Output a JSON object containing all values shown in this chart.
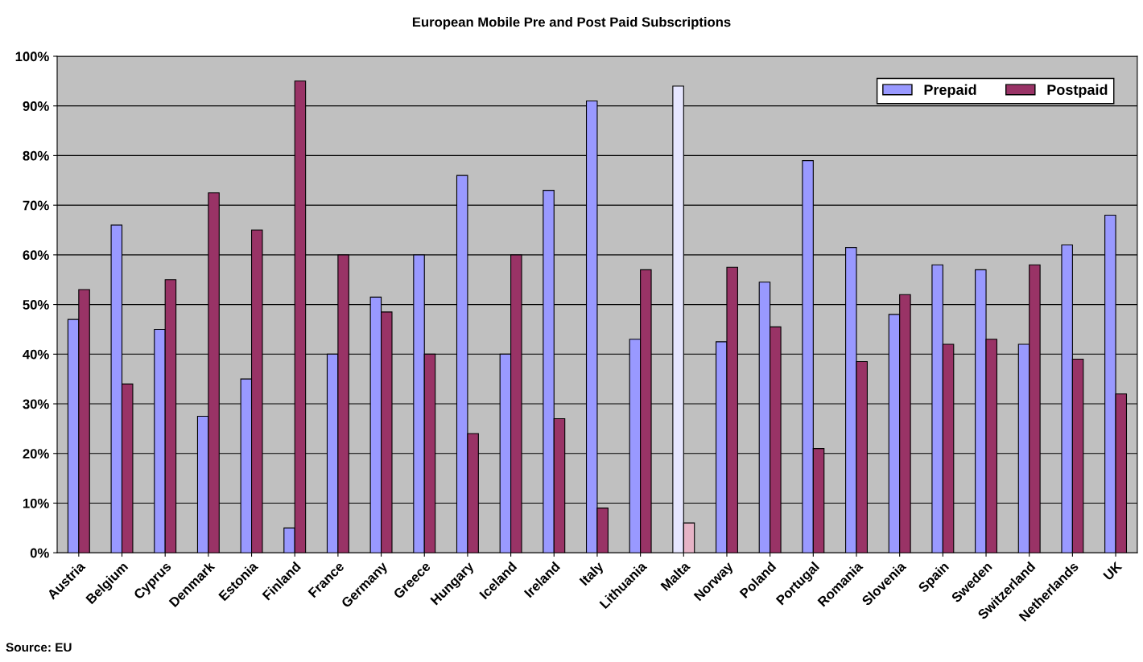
{
  "chart_data": {
    "type": "bar",
    "title": "European Mobile Pre and Post Paid Subscriptions",
    "categories": [
      "Austria",
      "Belgium",
      "Cyprus",
      "Denmark",
      "Estonia",
      "Finland",
      "France",
      "Germany",
      "Greece",
      "Hungary",
      "Iceland",
      "Ireland",
      "Italy",
      "Lithuania",
      "Malta",
      "Norway",
      "Poland",
      "Portugal",
      "Romania",
      "Slovenia",
      "Spain",
      "Sweden",
      "Switzerland",
      "Netherlands",
      "UK"
    ],
    "series": [
      {
        "name": "Prepaid",
        "color": "#9999ff",
        "colors": [
          "#9999ff",
          "#9999ff",
          "#9999ff",
          "#9999ff",
          "#9999ff",
          "#9999ff",
          "#9999ff",
          "#9999ff",
          "#9999ff",
          "#9999ff",
          "#9999ff",
          "#9999ff",
          "#9999ff",
          "#9999ff",
          "#e6e6ff",
          "#9999ff",
          "#9999ff",
          "#9999ff",
          "#9999ff",
          "#9999ff",
          "#9999ff",
          "#9999ff",
          "#9999ff",
          "#9999ff",
          "#9999ff"
        ],
        "values": [
          47,
          66,
          45,
          27.5,
          35,
          5,
          40,
          51.5,
          60,
          76,
          40,
          73,
          91,
          43,
          94,
          42.5,
          54.5,
          79,
          61.5,
          48,
          58,
          57,
          42,
          62,
          68
        ]
      },
      {
        "name": "Postpaid",
        "color": "#993366",
        "colors": [
          "#993366",
          "#993366",
          "#993366",
          "#993366",
          "#993366",
          "#993366",
          "#993366",
          "#993366",
          "#993366",
          "#993366",
          "#993366",
          "#993366",
          "#993366",
          "#993366",
          "#e6b3c6",
          "#993366",
          "#993366",
          "#993366",
          "#993366",
          "#993366",
          "#993366",
          "#993366",
          "#993366",
          "#993366",
          "#993366"
        ],
        "values": [
          53,
          34,
          55,
          72.5,
          65,
          95,
          60,
          48.5,
          40,
          24,
          60,
          27,
          9,
          57,
          6,
          57.5,
          45.5,
          21,
          38.5,
          52,
          42,
          43,
          58,
          39,
          32
        ]
      }
    ],
    "ylim": [
      0,
      100
    ],
    "yticks": [
      {
        "value": 0,
        "label": "0%"
      },
      {
        "value": 10,
        "label": "10%"
      },
      {
        "value": 20,
        "label": "20%"
      },
      {
        "value": 30,
        "label": "30%"
      },
      {
        "value": 40,
        "label": "40%"
      },
      {
        "value": 50,
        "label": "50%"
      },
      {
        "value": 60,
        "label": "60%"
      },
      {
        "value": 70,
        "label": "70%"
      },
      {
        "value": 80,
        "label": "80%"
      },
      {
        "value": 90,
        "label": "90%"
      },
      {
        "value": 100,
        "label": "100%"
      }
    ],
    "grid": "y",
    "legend": "top right",
    "annotations": [
      "Source: EU"
    ]
  }
}
